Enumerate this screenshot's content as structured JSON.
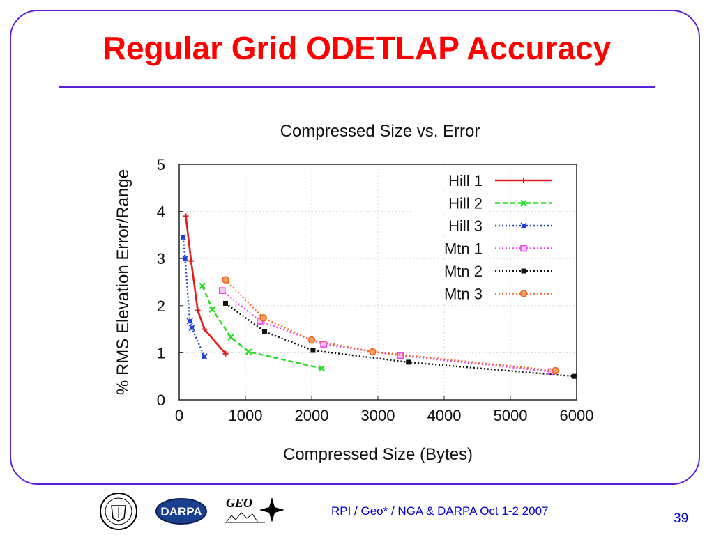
{
  "slide": {
    "title": "Regular Grid ODETLAP Accuracy",
    "footer": "RPI / Geo* /  NGA & DARPA  Oct 1-2 2007",
    "page_number": "39"
  },
  "logos": {
    "rpi_seal": "RENSSELAER POLYTECHNIC INSTITUTE 1824",
    "darpa": "DARPA",
    "geo": "GEO"
  },
  "colors": {
    "frame": "#5b1fd6",
    "title": "#ff0000",
    "footer": "#0000cc"
  },
  "chart_data": {
    "type": "line",
    "title": "Compressed Size vs. Error",
    "xlabel": "Compressed Size (Bytes)",
    "ylabel": "% RMS Elevation Error/Range",
    "xlim": [
      0,
      6000
    ],
    "ylim": [
      0,
      5
    ],
    "xticks": [
      "0",
      "1000",
      "2000",
      "3000",
      "4000",
      "5000",
      "6000"
    ],
    "yticks": [
      "0",
      "1",
      "2",
      "3",
      "4",
      "5"
    ],
    "grid": true,
    "legend_position": "top-right",
    "series": [
      {
        "name": "Hill 1",
        "color": "#e41a1c",
        "dash": "solid",
        "marker": "plus",
        "points": [
          [
            100,
            3.9
          ],
          [
            180,
            2.95
          ],
          [
            280,
            1.9
          ],
          [
            380,
            1.5
          ],
          [
            700,
            0.98
          ]
        ]
      },
      {
        "name": "Hill 2",
        "color": "#22dd22",
        "dash": "dashed",
        "marker": "cross",
        "points": [
          [
            350,
            2.42
          ],
          [
            500,
            1.92
          ],
          [
            780,
            1.33
          ],
          [
            1050,
            1.02
          ],
          [
            2150,
            0.67
          ]
        ]
      },
      {
        "name": "Hill 3",
        "color": "#1f3fdd",
        "dash": "dotted",
        "marker": "star",
        "points": [
          [
            60,
            3.45
          ],
          [
            90,
            3.0
          ],
          [
            160,
            1.67
          ],
          [
            190,
            1.53
          ],
          [
            380,
            0.92
          ]
        ]
      },
      {
        "name": "Mtn 1",
        "color": "#ee44ee",
        "dash": "dotted",
        "marker": "square-open",
        "points": [
          [
            650,
            2.32
          ],
          [
            1220,
            1.67
          ],
          [
            2180,
            1.18
          ],
          [
            3340,
            0.94
          ],
          [
            5620,
            0.6
          ]
        ]
      },
      {
        "name": "Mtn 2",
        "color": "#111111",
        "dash": "dotted",
        "marker": "square",
        "points": [
          [
            700,
            2.05
          ],
          [
            1290,
            1.45
          ],
          [
            2020,
            1.05
          ],
          [
            3460,
            0.8
          ],
          [
            5960,
            0.5
          ]
        ]
      },
      {
        "name": "Mtn 3",
        "color": "#ee6622",
        "dash": "dotted",
        "marker": "circle",
        "points": [
          [
            700,
            2.55
          ],
          [
            1270,
            1.74
          ],
          [
            2000,
            1.27
          ],
          [
            2920,
            1.02
          ],
          [
            5680,
            0.62
          ]
        ]
      }
    ]
  }
}
